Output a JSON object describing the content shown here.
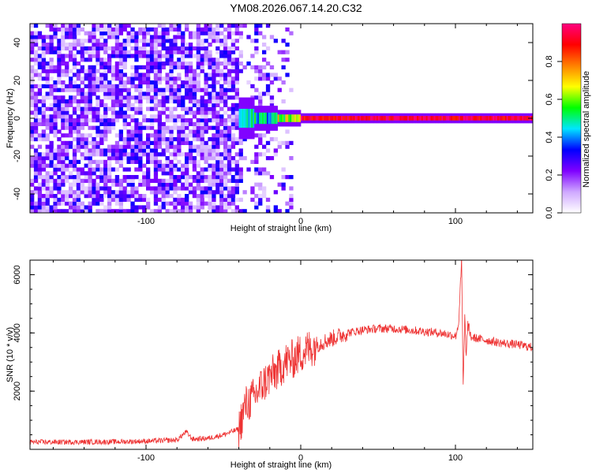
{
  "title": "YM08.2026.067.14.20.C32",
  "chart_data": [
    {
      "type": "heatmap",
      "xlabel": "Height of straight line (km)",
      "ylabel": "Frequency (Hz)",
      "xlim": [
        -175,
        150
      ],
      "ylim": [
        -50,
        50
      ],
      "xticks": [
        -100,
        0,
        100
      ],
      "yticks": [
        -40,
        -20,
        0,
        20,
        40
      ],
      "colorbar": {
        "label": "Normalized spectral amplitude",
        "range": [
          0,
          1
        ],
        "ticks": [
          0.0,
          0.2,
          0.4,
          0.6,
          0.8
        ],
        "colors": [
          "#ffffff",
          "#cfa8ff",
          "#7f00ff",
          "#0000ff",
          "#00e5ff",
          "#00ff00",
          "#ffff00",
          "#ff8000",
          "#ff0000",
          "#ff0080"
        ]
      },
      "regions": [
        {
          "x_range": [
            -175,
            -40
          ],
          "description": "broadband noise, amplitude ~0.1-0.3"
        },
        {
          "x_range": [
            -40,
            0
          ],
          "description": "transition, emerging 0 Hz band"
        },
        {
          "x_range": [
            0,
            150
          ],
          "description": "narrow band at 0 Hz, amplitude ~0.9-1.0"
        }
      ],
      "band_center_hz": 0
    },
    {
      "type": "line",
      "xlabel": "Height of straight line (km)",
      "ylabel": "SNR (10 * v/v)",
      "xlim": [
        -175,
        150
      ],
      "ylim": [
        0,
        6500
      ],
      "xticks": [
        -100,
        0,
        100
      ],
      "yticks": [
        2000,
        4000,
        6000
      ],
      "color": "#ee3333",
      "series": [
        {
          "x": [
            -175,
            -150,
            -120,
            -100,
            -80,
            -74,
            -70,
            -60,
            -50,
            -40,
            -36,
            -30,
            -25,
            -20,
            -15,
            -10,
            -5,
            0,
            5,
            10,
            15,
            20,
            25,
            30,
            40,
            50,
            60,
            70,
            80,
            90,
            95,
            100,
            102,
            104,
            105,
            106,
            107,
            108,
            110,
            115,
            120,
            130,
            140,
            150
          ],
          "values": [
            250,
            250,
            260,
            280,
            320,
            600,
            350,
            380,
            500,
            700,
            1500,
            1800,
            2200,
            2500,
            2700,
            3000,
            3100,
            3300,
            3450,
            3600,
            3700,
            3800,
            3900,
            4000,
            4100,
            4150,
            4150,
            4100,
            4050,
            4000,
            3950,
            3900,
            4300,
            6500,
            2100,
            4500,
            3200,
            4300,
            3850,
            3800,
            3750,
            3650,
            3600,
            3500
          ]
        }
      ]
    }
  ]
}
